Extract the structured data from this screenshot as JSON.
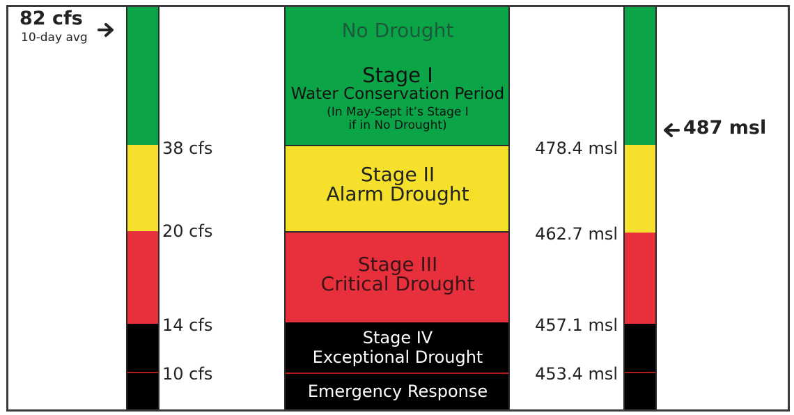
{
  "flow_reading": {
    "value": "82 cfs",
    "caption": "10-day avg"
  },
  "level_reading": {
    "value": "487 msl"
  },
  "flow_thresholds": [
    "38 cfs",
    "20 cfs",
    "14 cfs",
    "10 cfs"
  ],
  "level_thresholds": [
    "478.4 msl",
    "462.7 msl",
    "457.1 msl",
    "453.4 msl"
  ],
  "stages": {
    "no_drought": "No Drought",
    "stage1": {
      "title": "Stage I",
      "subtitle": "Water Conservation Period",
      "note_line1": "(In May-Sept it’s Stage I",
      "note_line2": "if in No Drought)"
    },
    "stage2": {
      "title": "Stage II",
      "subtitle": "Alarm Drought"
    },
    "stage3": {
      "title": "Stage III",
      "subtitle": "Critical Drought"
    },
    "stage4": {
      "title": "Stage IV",
      "subtitle": "Exceptional Drought"
    },
    "emergency": "Emergency Response"
  },
  "colors": {
    "green": "#0ba548",
    "yellow": "#f5e02b",
    "red": "#e8303c",
    "black": "#000000",
    "separator": "#b01c1c"
  }
}
